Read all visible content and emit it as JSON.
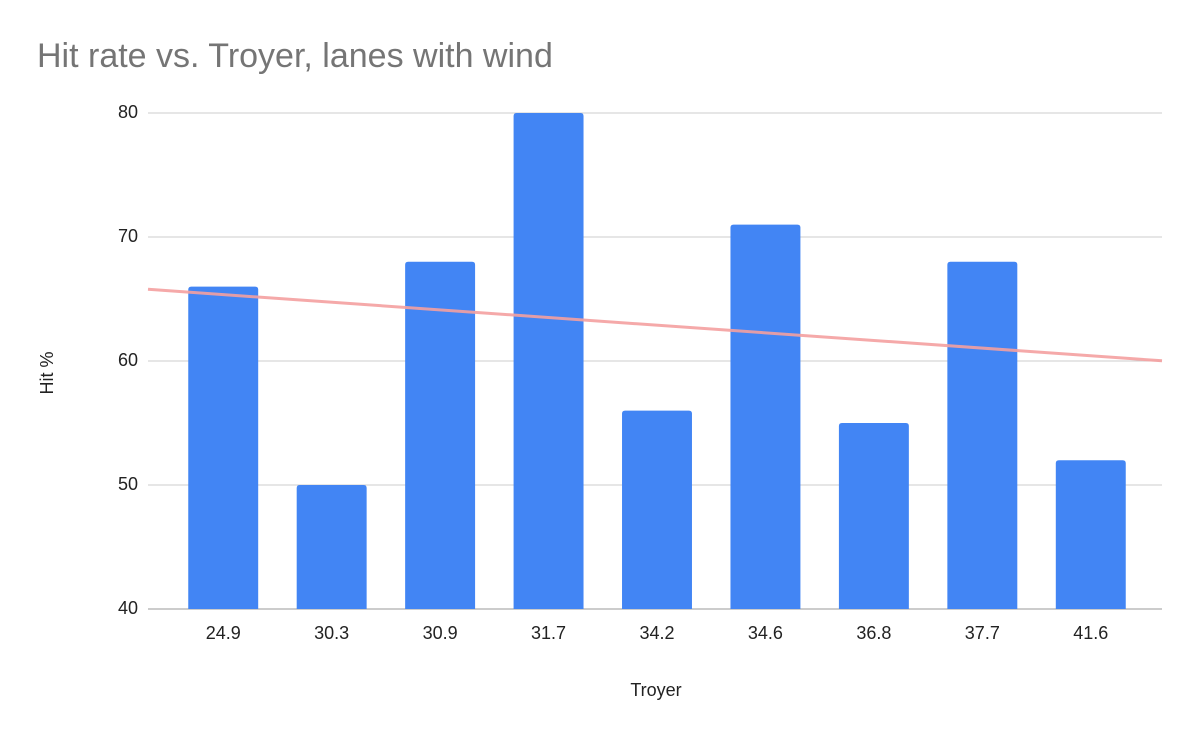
{
  "chart_data": {
    "type": "bar",
    "title": "Hit rate vs. Troyer, lanes with wind",
    "x_label": "Troyer",
    "y_label": "Hit %",
    "categories": [
      "24.9",
      "30.3",
      "30.9",
      "31.7",
      "34.2",
      "34.6",
      "36.8",
      "37.7",
      "41.6"
    ],
    "values": [
      66,
      50,
      68,
      80,
      56,
      71,
      55,
      68,
      52
    ],
    "color": "#4285f4",
    "ylim": [
      40,
      80
    ],
    "yticks": [
      40,
      50,
      60,
      70,
      80
    ],
    "grid": true,
    "trendline": true,
    "trendline_color": "#f4a0a0"
  }
}
